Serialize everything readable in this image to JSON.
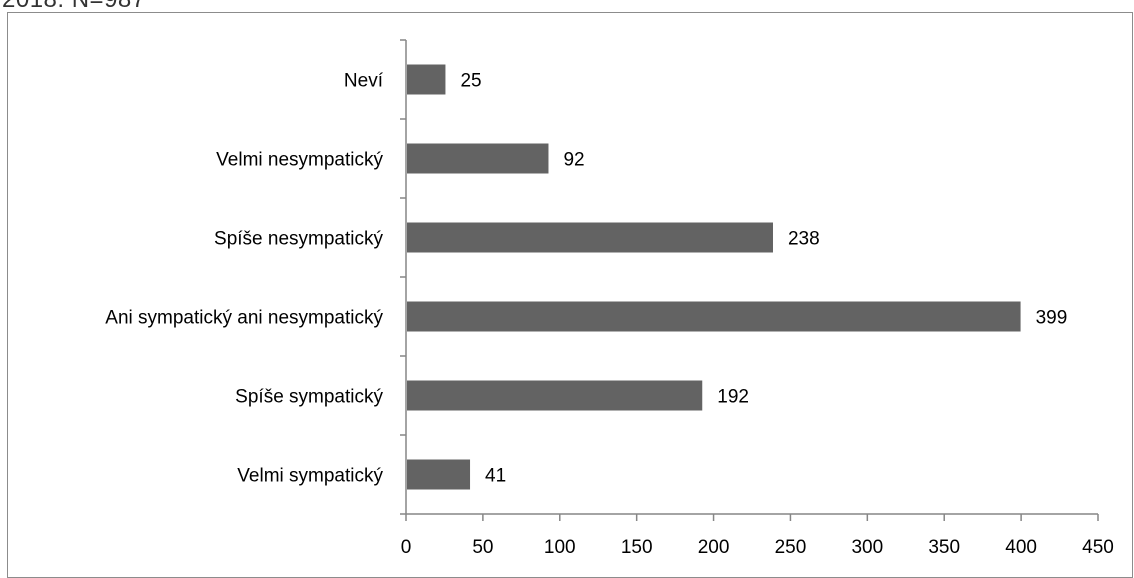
{
  "header_fragment": "2018. N=987",
  "chart_data": {
    "type": "bar",
    "orientation": "horizontal",
    "categories": [
      "Neví ",
      "Velmi nesympatický",
      "Spíše nesympatický",
      "Ani sympatický ani nesympatický",
      "Spíše sympatický",
      "Velmi sympatický"
    ],
    "values": [
      25,
      92,
      238,
      399,
      192,
      41
    ],
    "xlim": [
      0,
      450
    ],
    "x_ticks": [
      0,
      50,
      100,
      150,
      200,
      250,
      300,
      350,
      400,
      450
    ],
    "x_tick_labels": [
      "0",
      "50",
      "100",
      "150",
      "200",
      "250",
      "300",
      "350",
      "400",
      "450"
    ],
    "grid": false,
    "legend": "none",
    "bar_color": "#636363",
    "axis_color": "#868686"
  }
}
